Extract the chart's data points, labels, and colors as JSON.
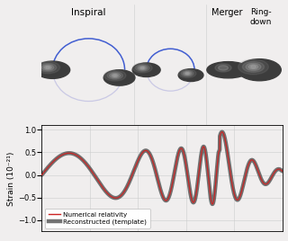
{
  "title_inspiral": "Inspiral",
  "title_merger": "Merger",
  "title_ringdown": "Ring-\ndown",
  "ylabel": "Strain (10⁻²¹)",
  "ylim": [
    -1.25,
    1.1
  ],
  "yticks": [
    -1.0,
    -0.5,
    0.0,
    0.5,
    1.0
  ],
  "legend_nr": "Numerical relativity",
  "legend_rec": "Reconstructed (template)",
  "nr_color": "#cc2222",
  "rec_color": "#555555",
  "background_color": "#f0eeee",
  "grid_color": "#cccccc",
  "sphere_dark": "#404040",
  "sphere_mid": "#686868",
  "sphere_light": "#b0b0b0",
  "orbit_blue": "#2244cc",
  "orbit_fade": "#aaaadd"
}
